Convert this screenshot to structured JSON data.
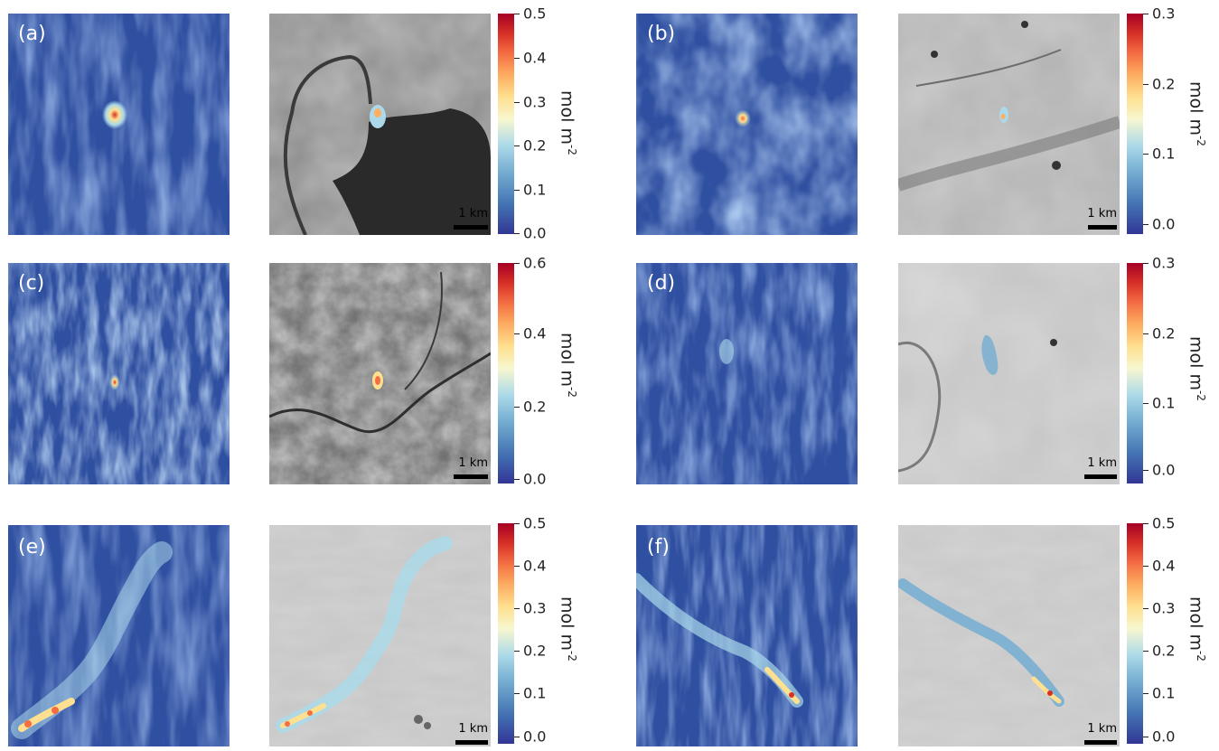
{
  "figure": {
    "panels": [
      {
        "id": "a",
        "label": "(a)",
        "scale_bar": "1 km",
        "colorbar": {
          "ticks": [
            "0.0",
            "0.1",
            "0.2",
            "0.3",
            "0.4",
            "0.5"
          ],
          "max": 0.5
        },
        "unit": "mol m",
        "unit_exp": "-2"
      },
      {
        "id": "b",
        "label": "(b)",
        "scale_bar": "1 km",
        "colorbar": {
          "ticks": [
            "0.0",
            "0.1",
            "0.2",
            "0.3"
          ],
          "max": 0.3
        },
        "unit": "mol m",
        "unit_exp": "-2"
      },
      {
        "id": "c",
        "label": "(c)",
        "scale_bar": "1 km",
        "colorbar": {
          "ticks": [
            "0.0",
            "0.2",
            "0.4",
            "0.6"
          ],
          "max": 0.6
        },
        "unit": "mol m",
        "unit_exp": "-2"
      },
      {
        "id": "d",
        "label": "(d)",
        "scale_bar": "1 km",
        "colorbar": {
          "ticks": [
            "0.0",
            "0.1",
            "0.2",
            "0.3"
          ],
          "max": 0.3
        },
        "unit": "mol m",
        "unit_exp": "-2"
      },
      {
        "id": "e",
        "label": "(e)",
        "scale_bar": "1 km",
        "colorbar": {
          "ticks": [
            "0.0",
            "0.1",
            "0.2",
            "0.3",
            "0.4",
            "0.5"
          ],
          "max": 0.5
        },
        "unit": "mol m",
        "unit_exp": "-2"
      },
      {
        "id": "f",
        "label": "(f)",
        "scale_bar": "1 km",
        "colorbar": {
          "ticks": [
            "0.0",
            "0.1",
            "0.2",
            "0.3",
            "0.4",
            "0.5"
          ],
          "max": 0.5
        },
        "unit": "mol m",
        "unit_exp": "-2"
      }
    ]
  },
  "colors": {
    "low": "#313695",
    "mid": "#f7f7d0",
    "high": "#a50026",
    "background_gray": "#8c8c8c"
  }
}
